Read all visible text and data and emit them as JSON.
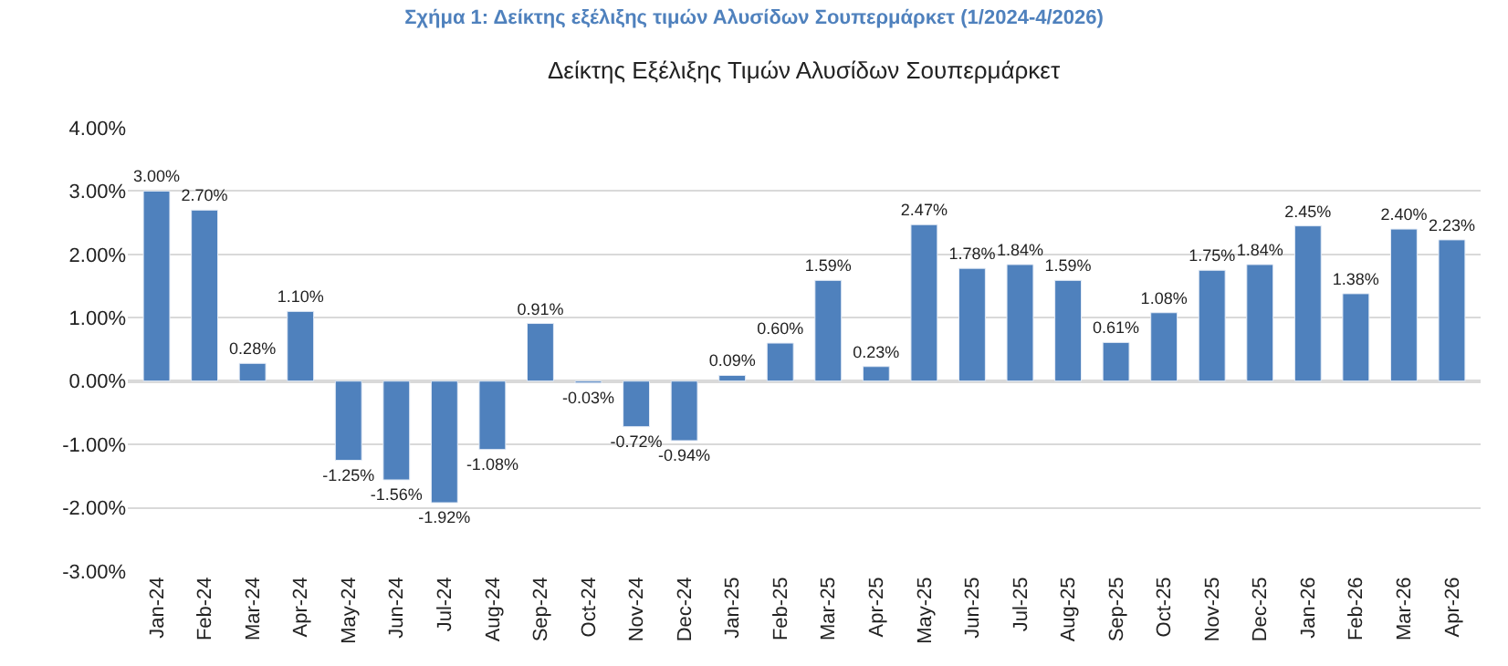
{
  "chart_data": {
    "type": "bar",
    "title": "Σχήμα 1: Δείκτης εξέλιξης τιμών Αλυσίδων Σουπερμάρκετ (1/2024-4/2026)",
    "subtitle": "Δείκτης Εξέλιξης Τιμών Αλυσίδων Σουπερμάρκετ",
    "categories": [
      "Jan-24",
      "Feb-24",
      "Mar-24",
      "Apr-24",
      "May-24",
      "Jun-24",
      "Jul-24",
      "Aug-24",
      "Sep-24",
      "Oct-24",
      "Nov-24",
      "Dec-24",
      "Jan-25",
      "Feb-25",
      "Mar-25",
      "Apr-25",
      "May-25",
      "Jun-25",
      "Jul-25",
      "Aug-25",
      "Sep-25",
      "Oct-25",
      "Nov-25",
      "Dec-25",
      "Jan-26",
      "Feb-26",
      "Mar-26",
      "Apr-26"
    ],
    "values": [
      3.0,
      2.7,
      0.28,
      1.1,
      -1.25,
      -1.56,
      -1.92,
      -1.08,
      0.91,
      -0.03,
      -0.72,
      -0.94,
      0.09,
      0.6,
      1.59,
      0.23,
      2.47,
      1.78,
      1.84,
      1.59,
      0.61,
      1.08,
      1.75,
      1.84,
      2.45,
      1.38,
      2.4,
      2.23
    ],
    "value_labels": [
      "3.00%",
      "2.70%",
      "0.28%",
      "1.10%",
      "-1.25%",
      "-1.56%",
      "-1.92%",
      "-1.08%",
      "0.91%",
      "-0.03%",
      "-0.72%",
      "-0.94%",
      "0.09%",
      "0.60%",
      "1.59%",
      "0.23%",
      "2.47%",
      "1.78%",
      "1.84%",
      "1.59%",
      "0.61%",
      "1.08%",
      "1.75%",
      "1.84%",
      "2.45%",
      "1.38%",
      "2.40%",
      "2.23%"
    ],
    "color": "#4f81bd",
    "ylim": [
      -3,
      4
    ],
    "yticks": [
      {
        "value": -3,
        "label": "-3.00%"
      },
      {
        "value": -2,
        "label": "-2.00%"
      },
      {
        "value": -1,
        "label": "-1.00%"
      },
      {
        "value": 0,
        "label": "0.00%"
      },
      {
        "value": 1,
        "label": "1.00%"
      },
      {
        "value": 2,
        "label": "2.00%"
      },
      {
        "value": 3,
        "label": "3.00%"
      },
      {
        "value": 4,
        "label": "4.00%"
      }
    ],
    "grid": "y"
  }
}
